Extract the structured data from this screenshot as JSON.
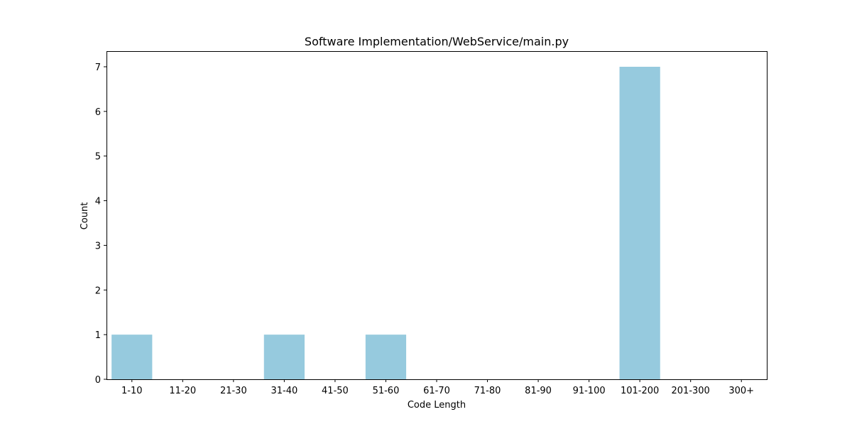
{
  "chart_data": {
    "type": "bar",
    "title": "Software Implementation/WebService/main.py",
    "xlabel": "Code Length",
    "ylabel": "Count",
    "categories": [
      "1-10",
      "11-20",
      "21-30",
      "31-40",
      "41-50",
      "51-60",
      "61-70",
      "71-80",
      "81-90",
      "91-100",
      "101-200",
      "201-300",
      "300+"
    ],
    "values": [
      1,
      0,
      0,
      1,
      0,
      1,
      0,
      0,
      0,
      0,
      7,
      0,
      0
    ],
    "ylim": [
      0,
      7.35
    ],
    "yticks": [
      0,
      1,
      2,
      3,
      4,
      5,
      6,
      7
    ],
    "bar_color": "#96cade",
    "grid": false,
    "legend": false
  }
}
